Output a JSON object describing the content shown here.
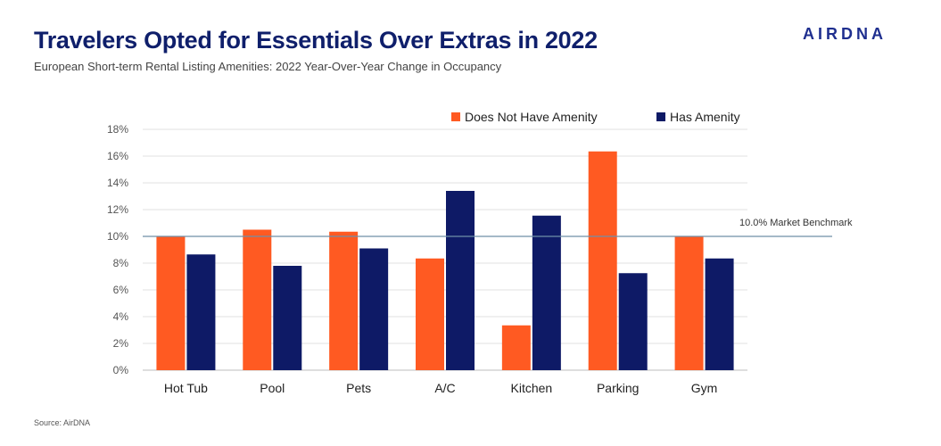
{
  "header": {
    "title": "Travelers Opted for Essentials Over Extras in 2022",
    "subtitle": "European Short-term Rental Listing Amenities: 2022 Year-Over-Year Change in Occupancy",
    "logo_text": "AIRDNA"
  },
  "footer": {
    "source": "Source: AirDNA"
  },
  "colors": {
    "title": "#0f1f6b",
    "orange": "#ff5a22",
    "navy": "#0e1a66",
    "benchmark": "#6f8fa8",
    "grid": "#e2e2e2"
  },
  "chart_data": {
    "type": "bar",
    "categories": [
      "Hot Tub",
      "Pool",
      "Pets",
      "A/C",
      "Kitchen",
      "Parking",
      "Gym"
    ],
    "series": [
      {
        "name": "Does Not Have Amenity",
        "color": "#ff5a22",
        "values": [
          10.0,
          10.5,
          10.35,
          8.35,
          3.35,
          16.35,
          10.0
        ]
      },
      {
        "name": "Has Amenity",
        "color": "#0e1a66",
        "values": [
          8.65,
          7.8,
          9.1,
          13.4,
          11.55,
          7.25,
          8.35
        ]
      }
    ],
    "yticks": [
      "0%",
      "2%",
      "4%",
      "6%",
      "8%",
      "10%",
      "12%",
      "14%",
      "16%",
      "18%"
    ],
    "ylim": [
      0,
      18
    ],
    "benchmark": {
      "value": 10.0,
      "label": "10.0% Market Benchmark"
    },
    "legend": "top-right",
    "grid": true
  }
}
